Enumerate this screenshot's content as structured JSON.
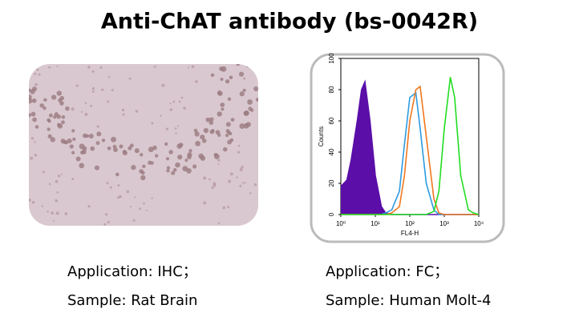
{
  "title": "Anti-ChAT antibody (bs-0042R)",
  "left_panel": {
    "caption": [
      "Application: IHC；",
      "Sample: Rat Brain"
    ]
  },
  "right_panel": {
    "caption": [
      "Application: FC；",
      "Sample: Human Molt-4"
    ],
    "chart_data": {
      "type": "line",
      "xlabel": "FL4-H",
      "ylabel": "Counts",
      "log_x": true,
      "x": [
        1,
        1.5,
        2,
        3,
        4,
        5,
        7,
        10,
        15,
        20,
        30,
        50,
        70,
        100,
        150,
        200,
        300,
        500,
        700,
        1000,
        1500,
        2000,
        3000,
        5000,
        7000,
        10000
      ],
      "xlim": [
        1,
        10000
      ],
      "xticks": [
        {
          "value": 1,
          "label": "10⁰"
        },
        {
          "value": 10,
          "label": "10¹"
        },
        {
          "value": 100,
          "label": "10²"
        },
        {
          "value": 1000,
          "label": "10³"
        },
        {
          "value": 10000,
          "label": "10⁴"
        }
      ],
      "ylim": [
        0,
        100
      ],
      "yticks": [
        0,
        20,
        40,
        60,
        80,
        100
      ],
      "series": [
        {
          "color": "#5b0fa8",
          "filled": true,
          "values": [
            18,
            22,
            35,
            60,
            80,
            85,
            60,
            25,
            5,
            1,
            0,
            0,
            0,
            0,
            0,
            0,
            0,
            0,
            0,
            0,
            0,
            0,
            0,
            0,
            0,
            0
          ]
        },
        {
          "color": "#2e9be0",
          "values": [
            0,
            0,
            0,
            0,
            0,
            0,
            0,
            0,
            0,
            1,
            3,
            15,
            45,
            75,
            78,
            55,
            20,
            3,
            0,
            0,
            0,
            0,
            0,
            0,
            0,
            0
          ]
        },
        {
          "color": "#f07820",
          "values": [
            0,
            0,
            0,
            0,
            0,
            0,
            0,
            0,
            0,
            0,
            1,
            5,
            25,
            60,
            80,
            82,
            50,
            10,
            1,
            0,
            0,
            0,
            0,
            0,
            0,
            0
          ]
        },
        {
          "color": "#22dd22",
          "values": [
            0,
            0,
            0,
            0,
            0,
            0,
            0,
            0,
            0,
            0,
            0,
            0,
            0,
            0,
            0,
            0,
            0,
            2,
            15,
            55,
            88,
            75,
            25,
            3,
            1,
            0
          ]
        }
      ]
    }
  }
}
